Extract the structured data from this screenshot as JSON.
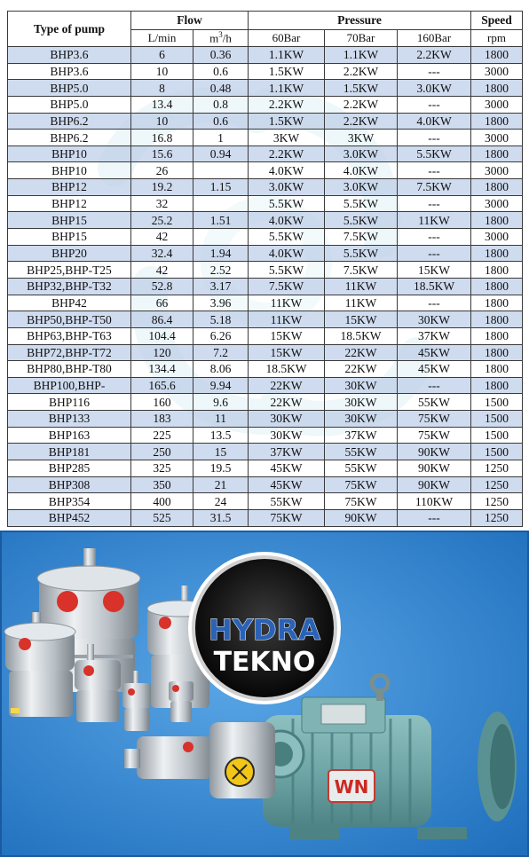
{
  "table": {
    "headers": {
      "type_of_pump": "Type of pump",
      "flow": "Flow",
      "pressure": "Pressure",
      "speed": "Speed",
      "lmin": "L/min",
      "m3h_base": "m",
      "m3h_sup": "3",
      "m3h_rest": "/h",
      "p60": "60Bar",
      "p70": "70Bar",
      "p160": "160Bar",
      "rpm": "rpm"
    },
    "rows": [
      [
        "BHP3.6",
        "6",
        "0.36",
        "1.1KW",
        "1.1KW",
        "2.2KW",
        "1800"
      ],
      [
        "BHP3.6",
        "10",
        "0.6",
        "1.5KW",
        "2.2KW",
        "---",
        "3000"
      ],
      [
        "BHP5.0",
        "8",
        "0.48",
        "1.1KW",
        "1.5KW",
        "3.0KW",
        "1800"
      ],
      [
        "BHP5.0",
        "13.4",
        "0.8",
        "2.2KW",
        "2.2KW",
        "---",
        "3000"
      ],
      [
        "BHP6.2",
        "10",
        "0.6",
        "1.5KW",
        "2.2KW",
        "4.0KW",
        "1800"
      ],
      [
        "BHP6.2",
        "16.8",
        "1",
        "3KW",
        "3KW",
        "---",
        "3000"
      ],
      [
        "BHP10",
        "15.6",
        "0.94",
        "2.2KW",
        "3.0KW",
        "5.5KW",
        "1800"
      ],
      [
        "BHP10",
        "26",
        "",
        "4.0KW",
        "4.0KW",
        "---",
        "3000"
      ],
      [
        "BHP12",
        "19.2",
        "1.15",
        "3.0KW",
        "3.0KW",
        "7.5KW",
        "1800"
      ],
      [
        "BHP12",
        "32",
        "",
        "5.5KW",
        "5.5KW",
        "---",
        "3000"
      ],
      [
        "BHP15",
        "25.2",
        "1.51",
        "4.0KW",
        "5.5KW",
        "11KW",
        "1800"
      ],
      [
        "BHP15",
        "42",
        "",
        "5.5KW",
        "7.5KW",
        "---",
        "3000"
      ],
      [
        "BHP20",
        "32.4",
        "1.94",
        "4.0KW",
        "5.5KW",
        "---",
        "1800"
      ],
      [
        "BHP25,BHP-T25",
        "42",
        "2.52",
        "5.5KW",
        "7.5KW",
        "15KW",
        "1800"
      ],
      [
        "BHP32,BHP-T32",
        "52.8",
        "3.17",
        "7.5KW",
        "11KW",
        "18.5KW",
        "1800"
      ],
      [
        "BHP42",
        "66",
        "3.96",
        "11KW",
        "11KW",
        "---",
        "1800"
      ],
      [
        "BHP50,BHP-T50",
        "86.4",
        "5.18",
        "11KW",
        "15KW",
        "30KW",
        "1800"
      ],
      [
        "BHP63,BHP-T63",
        "104.4",
        "6.26",
        "15KW",
        "18.5KW",
        "37KW",
        "1800"
      ],
      [
        "BHP72,BHP-T72",
        "120",
        "7.2",
        "15KW",
        "22KW",
        "45KW",
        "1800"
      ],
      [
        "BHP80,BHP-T80",
        "134.4",
        "8.06",
        "18.5KW",
        "22KW",
        "45KW",
        "1800"
      ],
      [
        "BHP100,BHP-",
        "165.6",
        "9.94",
        "22KW",
        "30KW",
        "---",
        "1800"
      ],
      [
        "BHP116",
        "160",
        "9.6",
        "22KW",
        "30KW",
        "55KW",
        "1500"
      ],
      [
        "BHP133",
        "183",
        "11",
        "30KW",
        "30KW",
        "75KW",
        "1500"
      ],
      [
        "BHP163",
        "225",
        "13.5",
        "30KW",
        "37KW",
        "75KW",
        "1500"
      ],
      [
        "BHP181",
        "250",
        "15",
        "37KW",
        "55KW",
        "90KW",
        "1500"
      ],
      [
        "BHP285",
        "325",
        "19.5",
        "45KW",
        "55KW",
        "90KW",
        "1250"
      ],
      [
        "BHP308",
        "350",
        "21",
        "45KW",
        "75KW",
        "90KW",
        "1250"
      ],
      [
        "BHP354",
        "400",
        "24",
        "55KW",
        "75KW",
        "110KW",
        "1250"
      ],
      [
        "BHP452",
        "525",
        "31.5",
        "75KW",
        "90KW",
        "---",
        "1250"
      ]
    ]
  },
  "photo": {
    "logo_line1": "HYDRA",
    "logo_line2": "TEKNO",
    "motor_badge": "WN",
    "colors": {
      "background": "#2f82cf",
      "motor": "#6fa6a7",
      "pump_steel": "#c7cdd2",
      "pump_ports": "#d8322b",
      "logo_blue": "#2a62b6"
    }
  }
}
